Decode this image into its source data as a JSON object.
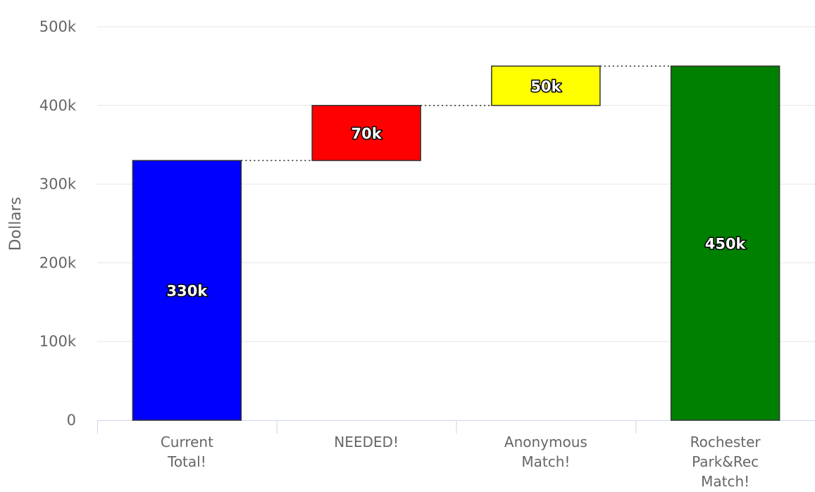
{
  "chart_data": {
    "type": "waterfall",
    "title": "",
    "xlabel": "",
    "ylabel": "Dollars",
    "ylim": [
      0,
      500000
    ],
    "yticks": [
      0,
      100000,
      200000,
      300000,
      400000,
      500000
    ],
    "ytick_labels": [
      "0",
      "100k",
      "200k",
      "300k",
      "400k",
      "500k"
    ],
    "grid": true,
    "legend": "none",
    "categories": [
      [
        "Current",
        "Total!"
      ],
      [
        "NEEDED!"
      ],
      [
        "Anonymous",
        "Match!"
      ],
      [
        "Rochester",
        "Park&Rec",
        "Match!"
      ]
    ],
    "points": [
      {
        "value": 330000,
        "start": 0,
        "end": 330000,
        "label": "330k",
        "color": "#0000ff",
        "kind": "base"
      },
      {
        "value": 70000,
        "start": 330000,
        "end": 400000,
        "label": "70k",
        "color": "#ff0000",
        "kind": "delta"
      },
      {
        "value": 50000,
        "start": 400000,
        "end": 450000,
        "label": "50k",
        "color": "#ffff00",
        "kind": "delta"
      },
      {
        "value": 450000,
        "start": 0,
        "end": 450000,
        "label": "450k",
        "color": "#008000",
        "kind": "sum"
      }
    ]
  }
}
